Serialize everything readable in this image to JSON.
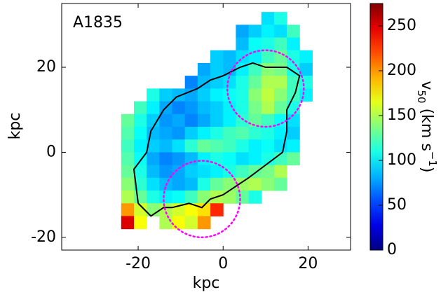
{
  "chart_data": {
    "type": "heatmap",
    "annotation": "A1835",
    "x_label": "kpc",
    "y_label": "kpc",
    "xlim": [
      -38,
      30
    ],
    "ylim": [
      -23,
      35
    ],
    "xticks": [
      -20,
      0,
      20
    ],
    "yticks": [
      -20,
      0,
      20
    ],
    "colormap": "jet",
    "clim": [
      0,
      275
    ],
    "cticks": [
      0,
      50,
      100,
      150,
      200,
      250
    ],
    "colorbar_label": [
      "v",
      "50",
      " (km s",
      "−1",
      ")"
    ],
    "heatmap": {
      "x_centers": [
        -22.5,
        -19.5,
        -16.5,
        -13.5,
        -10.5,
        -7.5,
        -4.5,
        -1.5,
        1.5,
        4.5,
        7.5,
        10.5,
        13.5,
        16.5,
        19.5
      ],
      "y_centers": [
        31.5,
        28.5,
        25.5,
        22.5,
        19.5,
        16.5,
        13.5,
        10.5,
        7.5,
        4.5,
        1.5,
        -1.5,
        -4.5,
        -7.5,
        -10.5,
        -13.5,
        -16.5
      ],
      "values": [
        [
          null,
          null,
          null,
          null,
          null,
          null,
          null,
          null,
          null,
          null,
          null,
          95,
          110,
          null,
          null
        ],
        [
          null,
          null,
          null,
          null,
          null,
          null,
          null,
          null,
          null,
          80,
          90,
          100,
          95,
          120,
          null
        ],
        [
          null,
          null,
          null,
          null,
          null,
          null,
          null,
          null,
          null,
          85,
          105,
          110,
          120,
          100,
          null
        ],
        [
          null,
          null,
          null,
          null,
          null,
          null,
          null,
          90,
          85,
          95,
          100,
          120,
          130,
          110,
          100
        ],
        [
          null,
          null,
          null,
          null,
          null,
          null,
          80,
          90,
          85,
          100,
          120,
          140,
          135,
          110,
          90
        ],
        [
          null,
          null,
          null,
          null,
          null,
          70,
          85,
          90,
          95,
          110,
          130,
          150,
          150,
          120,
          110
        ],
        [
          null,
          null,
          110,
          90,
          85,
          80,
          90,
          100,
          105,
          110,
          140,
          155,
          140,
          120,
          100
        ],
        [
          null,
          120,
          100,
          80,
          70,
          75,
          85,
          90,
          100,
          110,
          135,
          150,
          130,
          110,
          null
        ],
        [
          130,
          110,
          90,
          75,
          80,
          70,
          80,
          90,
          100,
          115,
          130,
          120,
          105,
          95,
          null
        ],
        [
          125,
          105,
          85,
          80,
          75,
          90,
          100,
          110,
          120,
          125,
          115,
          110,
          100,
          90,
          null
        ],
        [
          120,
          100,
          90,
          85,
          95,
          115,
          130,
          125,
          120,
          110,
          100,
          105,
          95,
          100,
          null
        ],
        [
          125,
          105,
          80,
          70,
          75,
          85,
          100,
          110,
          105,
          95,
          100,
          110,
          120,
          130,
          null
        ],
        [
          130,
          110,
          85,
          75,
          80,
          90,
          95,
          100,
          110,
          120,
          130,
          135,
          150,
          null,
          null
        ],
        [
          140,
          115,
          95,
          85,
          80,
          85,
          110,
          130,
          140,
          145,
          150,
          140,
          130,
          null,
          null
        ],
        [
          150,
          130,
          110,
          100,
          105,
          120,
          140,
          150,
          145,
          130,
          110,
          null,
          null,
          null,
          null
        ],
        [
          200,
          160,
          140,
          150,
          160,
          170,
          180,
          230,
          null,
          null,
          null,
          null,
          null,
          null,
          null
        ],
        [
          250,
          170,
          null,
          150,
          170,
          160,
          200,
          null,
          null,
          null,
          null,
          null,
          null,
          null,
          null
        ]
      ]
    },
    "contour": {
      "color": "#000000",
      "x": [
        -20,
        -21,
        -18,
        -17,
        -14,
        -11,
        -6,
        -3,
        0,
        4,
        7,
        10,
        15,
        18,
        17,
        15,
        15,
        14,
        10,
        6,
        3,
        0,
        -3,
        -5,
        -8,
        -12,
        -14,
        -17,
        -20
      ],
      "y": [
        -12,
        -4,
        0,
        5,
        10,
        13,
        15,
        17,
        18,
        20,
        21,
        20,
        20,
        18,
        14,
        10,
        5,
        0,
        -3,
        -6,
        -8,
        -10,
        -11,
        -13,
        -12,
        -13,
        -13,
        -15,
        -12
      ]
    },
    "circles": [
      {
        "cx": 10,
        "cy": 15,
        "r": 9,
        "color": "#ff00ff"
      },
      {
        "cx": -5,
        "cy": -11,
        "r": 9,
        "color": "#ff00ff"
      }
    ]
  }
}
